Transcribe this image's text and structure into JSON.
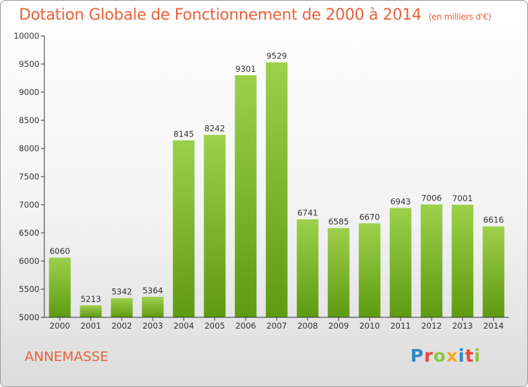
{
  "title": "Dotation Globale de Fonctionnement de 2000 à 2014",
  "subtitle": "(en milliers d'€)",
  "commune": "ANNEMASSE",
  "logo": {
    "text": "Proxiti",
    "letters": [
      {
        "char": "P",
        "color": "#2e86c8"
      },
      {
        "char": "r",
        "color": "#e8463a"
      },
      {
        "char": "o",
        "color": "#8cc63f"
      },
      {
        "char": "x",
        "color": "#f5a623"
      },
      {
        "char": "i",
        "color": "#2e86c8"
      },
      {
        "char": "t",
        "color": "#e8463a"
      },
      {
        "char": "i",
        "color": "#8cc63f"
      }
    ]
  },
  "colors": {
    "bar_top": "#9dd04c",
    "bar_bottom": "#5e9a12",
    "title": "#e8623a",
    "axis": "#333333"
  },
  "chart_data": {
    "type": "bar",
    "title": "Dotation Globale de Fonctionnement de 2000 à 2014",
    "subtitle": "(en milliers d'€)",
    "categories": [
      "2000",
      "2001",
      "2002",
      "2003",
      "2004",
      "2005",
      "2006",
      "2007",
      "2008",
      "2009",
      "2010",
      "2011",
      "2012",
      "2013",
      "2014"
    ],
    "values": [
      6060,
      5213,
      5342,
      5364,
      8145,
      8242,
      9301,
      9529,
      6741,
      6585,
      6670,
      6943,
      7006,
      7001,
      6616
    ],
    "ylim": [
      5000,
      10000
    ],
    "yticks": [
      5000,
      5500,
      6000,
      6500,
      7000,
      7500,
      8000,
      8500,
      9000,
      9500,
      10000
    ],
    "xlabel": "",
    "ylabel": "",
    "grid": false,
    "legend": "none"
  }
}
